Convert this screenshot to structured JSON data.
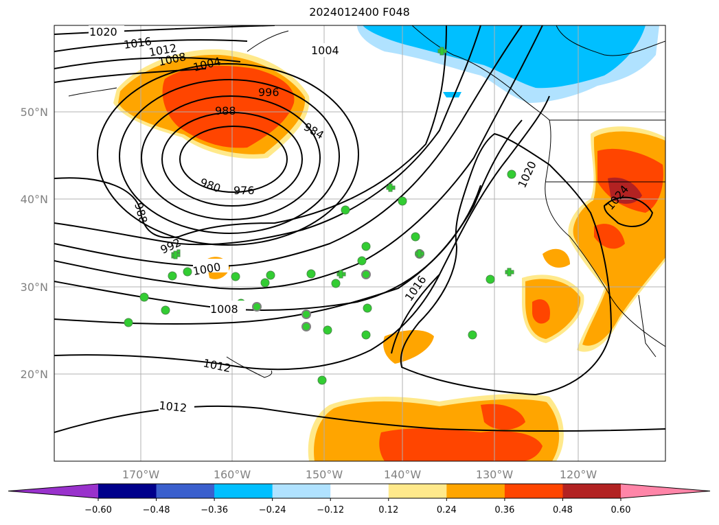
{
  "title": "2024012400 F048",
  "map": {
    "lon_ticks": [
      "170°W",
      "160°W",
      "150°W",
      "140°W",
      "130°W",
      "120°W"
    ],
    "lat_ticks": [
      "50°N",
      "40°N",
      "30°N",
      "20°N"
    ],
    "contour_labels": [
      "1020",
      "1016",
      "1012",
      "1008",
      "1004",
      "1004",
      "996",
      "988",
      "984",
      "980",
      "976",
      "988",
      "992",
      "1000",
      "1008",
      "1012",
      "1012",
      "1016",
      "1020",
      "1024"
    ]
  },
  "colorbar": {
    "tick_labels": [
      "−0.60",
      "−0.48",
      "−0.36",
      "−0.24",
      "−0.12",
      "0.12",
      "0.24",
      "0.36",
      "0.48",
      "0.60"
    ],
    "colors": [
      "#9932cc",
      "#00008b",
      "#3a5fcd",
      "#00bfff",
      "#b0e2ff",
      "#ffffff",
      "#ffe98b",
      "#ffa500",
      "#ff4500",
      "#b22222",
      "#ff85a8"
    ]
  }
}
